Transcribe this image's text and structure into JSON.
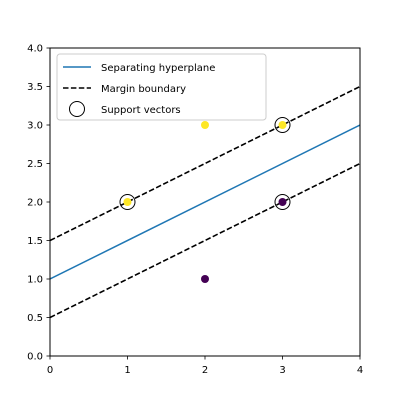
{
  "chart_data": {
    "type": "scatter",
    "title": "",
    "xlabel": "",
    "ylabel": "",
    "xlim": [
      0,
      4
    ],
    "ylim": [
      0,
      4
    ],
    "x_ticks": [
      0,
      1,
      2,
      3,
      4
    ],
    "x_tick_labels": [
      "0",
      "1",
      "2",
      "3",
      "4"
    ],
    "y_ticks": [
      0,
      0.5,
      1,
      1.5,
      2,
      2.5,
      3,
      3.5,
      4
    ],
    "y_tick_labels": [
      "0.0",
      "0.5",
      "1.0",
      "1.5",
      "2.0",
      "2.5",
      "3.0",
      "3.5",
      "4.0"
    ],
    "grid": false,
    "legend_position": "top-left",
    "points": [
      {
        "x": 1,
        "y": 2,
        "class": 1,
        "color": "#fde725"
      },
      {
        "x": 2,
        "y": 3,
        "class": 1,
        "color": "#fde725"
      },
      {
        "x": 3,
        "y": 3,
        "class": 1,
        "color": "#fde725"
      },
      {
        "x": 2,
        "y": 1,
        "class": 0,
        "color": "#440154"
      },
      {
        "x": 3,
        "y": 2,
        "class": 0,
        "color": "#440154"
      }
    ],
    "lines": [
      {
        "name": "Separating hyperplane",
        "style": "solid",
        "color": "#1f77b4",
        "x": [
          0,
          4
        ],
        "y": [
          1.0,
          3.0
        ]
      },
      {
        "name": "Margin boundary",
        "style": "dashed",
        "color": "#000000",
        "x": [
          0,
          4
        ],
        "y": [
          1.5,
          3.5
        ]
      },
      {
        "name": "",
        "style": "dashed",
        "color": "#000000",
        "x": [
          0,
          4
        ],
        "y": [
          0.5,
          2.5
        ]
      }
    ],
    "support_vectors": {
      "name": "Support vectors",
      "points": [
        {
          "x": 1,
          "y": 2
        },
        {
          "x": 3,
          "y": 3
        },
        {
          "x": 3,
          "y": 2
        }
      ]
    },
    "legend": [
      {
        "label": "Separating hyperplane",
        "marker": "solid-line",
        "color": "#1f77b4"
      },
      {
        "label": "Margin boundary",
        "marker": "dashed-line",
        "color": "#000000"
      },
      {
        "label": "Support vectors",
        "marker": "open-circle",
        "color": "#000000"
      }
    ]
  }
}
